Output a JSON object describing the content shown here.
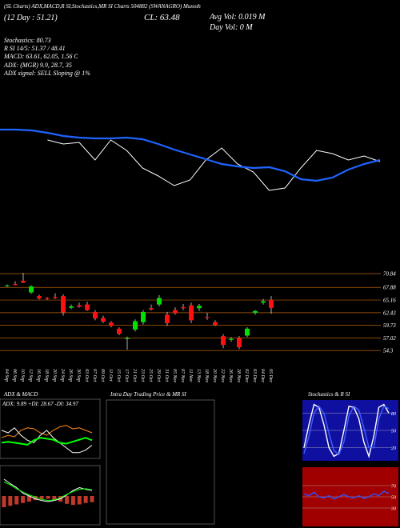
{
  "header": {
    "line1": "(SL Charts) ADX,MACD,R SI,Stochastics,MR SI Charts 504882 (SWANAGRO) Munoth",
    "day": "(12 Day : 51.21)",
    "close": "CL: 63.48",
    "avg_vol": "Avg Vol: 0.019 M",
    "day_vol": "Day Vol: 0 M",
    "stoch": "Stochastics: 80.73",
    "rsi": "R SI 14/5: 51.37 / 48.41",
    "macd": "MACD: 63.61, 62.05, 1.56 C",
    "adx": "ADX: (MGR) 9.9, 28.7, 35",
    "adx_signal": "ADX signal: SELL Sloping @ 1%"
  },
  "trend_chart": {
    "ylim": [
      0,
      100
    ],
    "ma_color": "#1e64ff",
    "price_color": "#ffffff",
    "ma": [
      88,
      88,
      87,
      84,
      80,
      78,
      77,
      77,
      78,
      76,
      70,
      63,
      57,
      51,
      45,
      42,
      40,
      41,
      36,
      26,
      24,
      28,
      38,
      45,
      50
    ],
    "price": [
      null,
      null,
      null,
      75,
      70,
      72,
      50,
      75,
      62,
      40,
      30,
      18,
      25,
      50,
      65,
      45,
      35,
      12,
      15,
      40,
      62,
      58,
      50,
      55,
      48
    ]
  },
  "price_chart": {
    "ylim": [
      51.4,
      72.05
    ],
    "up_color": "#00e000",
    "down_color": "#ff1010",
    "grid_color": "#b8600a",
    "yticks": [
      70.84,
      67.88,
      65.16,
      62.43,
      59.73,
      57.02,
      54.3
    ],
    "dates": [
      "04 Sep",
      "06 Sep",
      "10 Sep",
      "12 Sep",
      "16 Sep",
      "18 Sep",
      "20 Sep",
      "24 Sep",
      "26 Sep",
      "30 Sep",
      "03 Oct",
      "07 Oct",
      "09 Oct",
      "11 Oct",
      "15 Oct",
      "17 Oct",
      "21 Oct",
      "23 Oct",
      "25 Oct",
      "29 Oct",
      "31 Oct",
      "05 Nov",
      "07 Nov",
      "11 Nov",
      "13 Nov",
      "18 Nov",
      "20 Nov",
      "22 Nov",
      "26 Nov",
      "28 Nov",
      "02 Dec",
      "03 Dec",
      "04 Dec",
      "05 Dec"
    ],
    "open": [
      68.2,
      68.6,
      69.3,
      66.8,
      66.0,
      65.6,
      65.8,
      66.0,
      63.5,
      64.0,
      64.2,
      62.6,
      61.3,
      60.3,
      59.0,
      56.8,
      58.8,
      60.4,
      63.4,
      64.2,
      62.0,
      63.0,
      63.6,
      64.0,
      63.4,
      61.5,
      60.4,
      57.4,
      56.6,
      57.0,
      57.5,
      62.4,
      64.6,
      65.2
    ],
    "high": [
      68.5,
      69.2,
      71.0,
      68.3,
      66.3,
      65.8,
      66.6,
      66.4,
      64.2,
      64.6,
      64.8,
      63.0,
      61.8,
      60.6,
      59.3,
      57.3,
      61.0,
      63.0,
      64.2,
      66.2,
      62.6,
      63.6,
      64.3,
      64.6,
      64.3,
      62.4,
      60.8,
      57.8,
      57.2,
      57.4,
      59.3,
      63.0,
      65.4,
      66.0
    ],
    "low": [
      68.0,
      68.3,
      68.8,
      66.5,
      65.3,
      65.2,
      65.4,
      61.8,
      63.2,
      63.5,
      62.8,
      60.8,
      60.2,
      59.3,
      57.6,
      54.5,
      58.4,
      59.9,
      62.9,
      63.8,
      59.6,
      62.0,
      63.0,
      60.2,
      62.8,
      60.9,
      59.6,
      54.8,
      56.2,
      54.6,
      57.2,
      62.0,
      64.2,
      62.2
    ],
    "close": [
      68.3,
      68.4,
      68.9,
      68.1,
      65.5,
      65.4,
      65.6,
      62.5,
      63.8,
      63.7,
      63.0,
      61.2,
      60.5,
      59.6,
      57.9,
      57.0,
      60.6,
      62.6,
      63.1,
      65.6,
      60.2,
      62.3,
      63.4,
      60.8,
      63.9,
      61.4,
      59.8,
      55.5,
      56.8,
      55.0,
      59.0,
      62.8,
      64.9,
      63.48
    ]
  },
  "adx_panel": {
    "title": "ADX  & MACD",
    "label": "ADX: 9.89  +DI: 28.67  -DI: 34.97",
    "ylim": [
      0,
      100
    ],
    "series": [
      {
        "color": "#ff8c1a",
        "values": [
          40,
          45,
          42,
          55,
          60,
          58,
          50,
          45,
          55,
          62,
          65,
          58,
          60,
          55,
          50
        ]
      },
      {
        "color": "#ffffff",
        "values": [
          55,
          50,
          60,
          45,
          35,
          30,
          45,
          55,
          40,
          30,
          20,
          10,
          10,
          15,
          25
        ]
      },
      {
        "color": "#00ff00",
        "values": [
          30,
          32,
          30,
          28,
          26,
          35,
          40,
          38,
          36,
          30,
          28,
          32,
          36,
          40,
          35
        ]
      }
    ]
  },
  "macd_panel": {
    "ylim": [
      0,
      100
    ],
    "bar_color": "#c0392b",
    "series": [
      {
        "color": "#ffffff",
        "values": [
          80,
          72,
          65,
          55,
          50,
          45,
          42,
          40,
          42,
          45,
          52,
          60,
          65,
          62,
          60
        ]
      },
      {
        "color": "#00ff00",
        "values": [
          75,
          70,
          63,
          57,
          52,
          48,
          44,
          42,
          43,
          47,
          53,
          58,
          62,
          63,
          61
        ]
      }
    ],
    "hist": [
      40,
      35,
      30,
      25,
      20,
      15,
      12,
      10,
      14,
      20,
      28,
      32,
      30,
      25,
      22
    ]
  },
  "intraday_panel": {
    "title": "Intra Day Trading Price & MR  SI"
  },
  "stoch_panel": {
    "title": "Stochastics & R  SI",
    "ylim": [
      0,
      100
    ],
    "yticks": [
      80,
      50,
      20
    ],
    "bg": "#1010a0",
    "series": [
      {
        "color": "#ffffff",
        "values": [
          20,
          60,
          95,
          90,
          60,
          20,
          5,
          10,
          50,
          92,
          90,
          70,
          30,
          5,
          40,
          90,
          95,
          80
        ]
      },
      {
        "color": "#4060ff",
        "values": [
          10,
          40,
          80,
          92,
          80,
          45,
          15,
          8,
          30,
          75,
          92,
          85,
          55,
          20,
          20,
          70,
          92,
          88
        ]
      }
    ]
  },
  "rsi_panel": {
    "ylim": [
      0,
      100
    ],
    "yticks": [
      70,
      50,
      30
    ],
    "bg": "#a00000",
    "series": [
      {
        "color": "#3050ff",
        "values": [
          55,
          52,
          58,
          50,
          48,
          52,
          46,
          50,
          54,
          50,
          48,
          52,
          47,
          50,
          55,
          52,
          60,
          56
        ]
      }
    ]
  }
}
